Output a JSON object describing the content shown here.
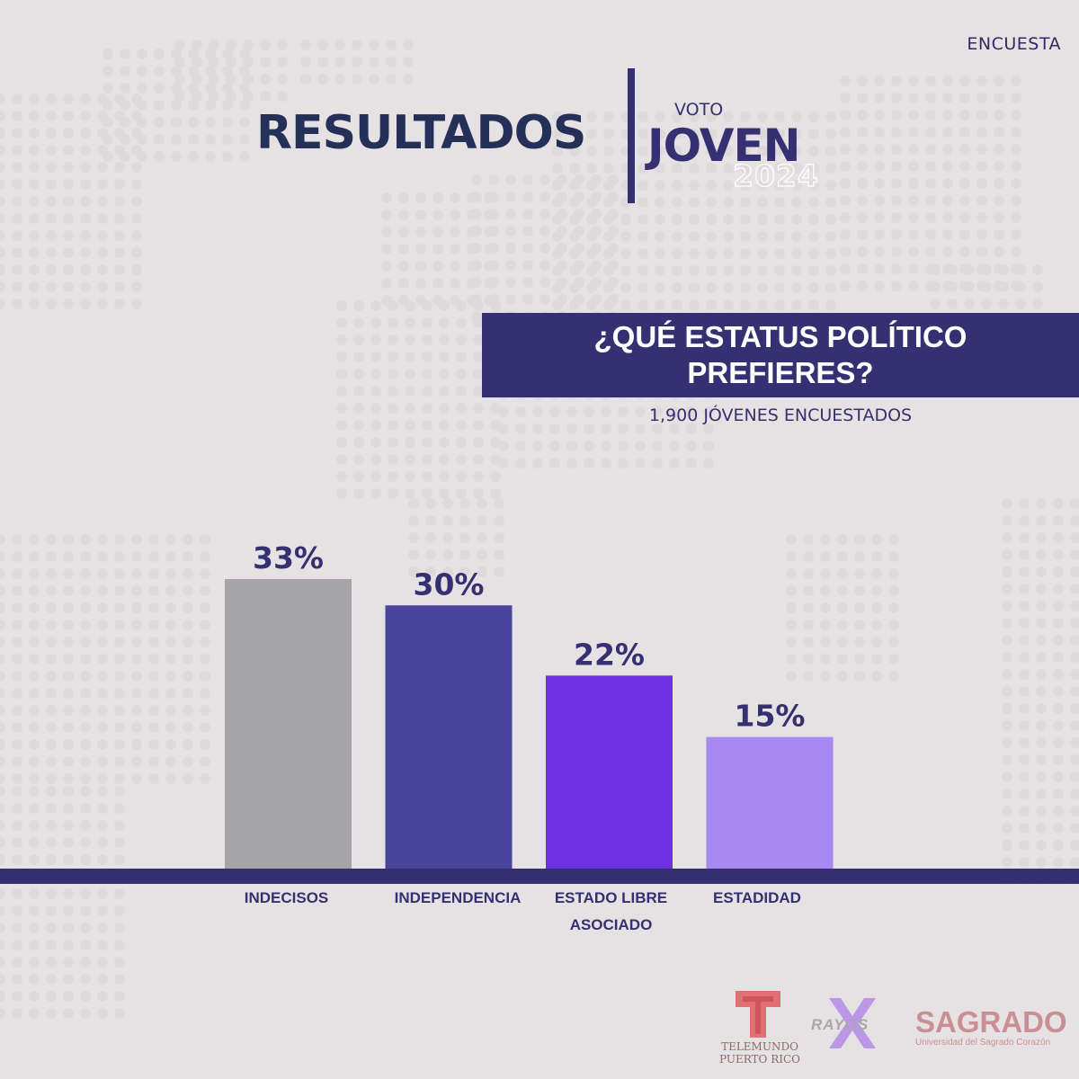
{
  "header": {
    "tag": "ENCUESTA",
    "title": "RESULTADOS",
    "brand_small": "VOTO",
    "brand_big": "JOVEN",
    "brand_year": "2024"
  },
  "question": {
    "line1": "¿QUÉ ESTATUS POLÍTICO",
    "line2": "PREFIERES?",
    "sample": "1,900 JÓVENES ENCUESTADOS"
  },
  "chart_data": {
    "type": "bar",
    "categories": [
      "INDECISOS",
      "INDEPENDENCIA",
      "ESTADO LIBRE ASOCIADO",
      "ESTADIDAD"
    ],
    "category_lines": [
      [
        "INDECISOS"
      ],
      [
        "INDEPENDENCIA"
      ],
      [
        "ESTADO LIBRE",
        "ASOCIADO"
      ],
      [
        "ESTADIDAD"
      ]
    ],
    "values": [
      33,
      30,
      22,
      15
    ],
    "value_labels": [
      "33%",
      "30%",
      "22%",
      "15%"
    ],
    "colors": [
      "#a5a4a6",
      "#49449e",
      "#6c32e1",
      "#a889f3"
    ],
    "ylim": [
      0,
      33
    ],
    "grid": false,
    "legend": "none"
  },
  "logos": {
    "telemundo_caption": "TELEMUNDO\nPUERTO RICO",
    "telemundo_line1": "TELEMUNDO",
    "telemundo_line2": "PUERTO RICO",
    "rayos": "RAYOS",
    "sagrado_name": "SAGRADO",
    "sagrado_sub": "Universidad del Sagrado Corazón"
  },
  "colors": {
    "background": "#e6e2e3",
    "primary": "#343071",
    "title": "#243057"
  }
}
